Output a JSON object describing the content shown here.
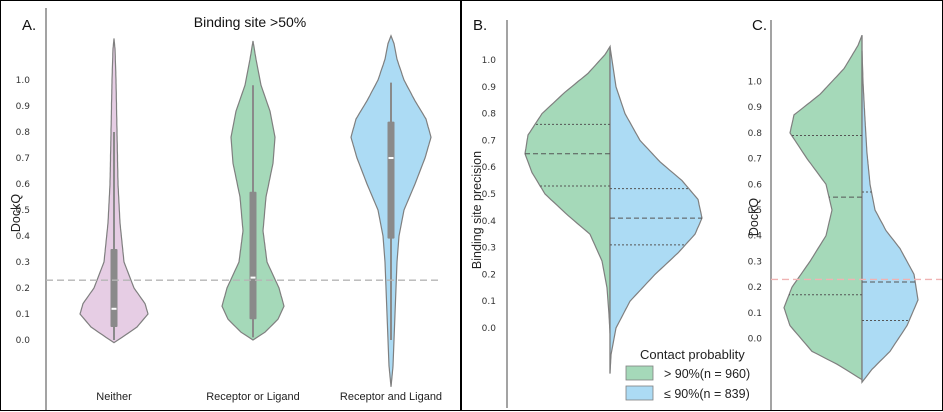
{
  "colors": {
    "pink": "#e6cde4",
    "green": "#a5d9b9",
    "blue": "#acdbf4",
    "outline": "#7f7f7f",
    "box": "#8a8a8a",
    "ref_gray": "#b5b5b5",
    "ref_red": "#f0b3b3"
  },
  "chart_data": [
    {
      "panel_label": "A.",
      "type": "violin",
      "title": "Binding site >50%",
      "ylabel": "DockQ",
      "yticks": [
        0.0,
        0.1,
        0.2,
        0.3,
        0.4,
        0.5,
        0.6,
        0.7,
        0.8,
        0.9,
        1.0
      ],
      "ylim": [
        -0.18,
        1.18
      ],
      "reference_line": 0.23,
      "categories": [
        "Neither",
        "Receptor or Ligand",
        "Receptor and Ligand"
      ],
      "series": [
        {
          "category": "Neither",
          "color": "pink",
          "median": 0.12,
          "q1": 0.05,
          "q3": 0.35,
          "whisker_low": 0.0,
          "whisker_high": 0.8
        },
        {
          "category": "Receptor or Ligand",
          "color": "green",
          "median": 0.24,
          "q1": 0.08,
          "q3": 0.57,
          "whisker_low": 0.01,
          "whisker_high": 0.98
        },
        {
          "category": "Receptor and Ligand",
          "color": "blue",
          "median": 0.7,
          "q1": 0.39,
          "q3": 0.84,
          "whisker_low": 0.0,
          "whisker_high": 0.99
        }
      ]
    },
    {
      "panel_label": "B.",
      "type": "split-violin",
      "ylabel": "Binding site precision",
      "yticks": [
        0.0,
        0.1,
        0.2,
        0.3,
        0.4,
        0.5,
        0.6,
        0.7,
        0.8,
        0.9,
        1.0
      ],
      "ylim": [
        -0.18,
        1.1
      ],
      "series": [
        {
          "side": "left",
          "color": "green",
          "q1": 0.53,
          "median": 0.65,
          "q3": 0.76
        },
        {
          "side": "right",
          "color": "blue",
          "q1": 0.31,
          "median": 0.41,
          "q3": 0.52
        }
      ]
    },
    {
      "panel_label": "C.",
      "type": "split-violin",
      "ylabel": "DockQ",
      "yticks": [
        0.0,
        0.1,
        0.2,
        0.3,
        0.4,
        0.5,
        0.6,
        0.7,
        0.8,
        0.9,
        1.0
      ],
      "ylim": [
        -0.18,
        1.18
      ],
      "reference_line": 0.23,
      "series": [
        {
          "side": "left",
          "color": "green",
          "q1": 0.17,
          "median": 0.55,
          "q3": 0.79
        },
        {
          "side": "right",
          "color": "blue",
          "q1": 0.07,
          "median": 0.22,
          "q3": 0.57
        }
      ]
    }
  ],
  "legend": {
    "title": "Contact probablity",
    "entries": [
      {
        "label": "> 90%(n = 960)",
        "color": "green"
      },
      {
        "label": "≤ 90%(n = 839)",
        "color": "blue"
      }
    ]
  }
}
